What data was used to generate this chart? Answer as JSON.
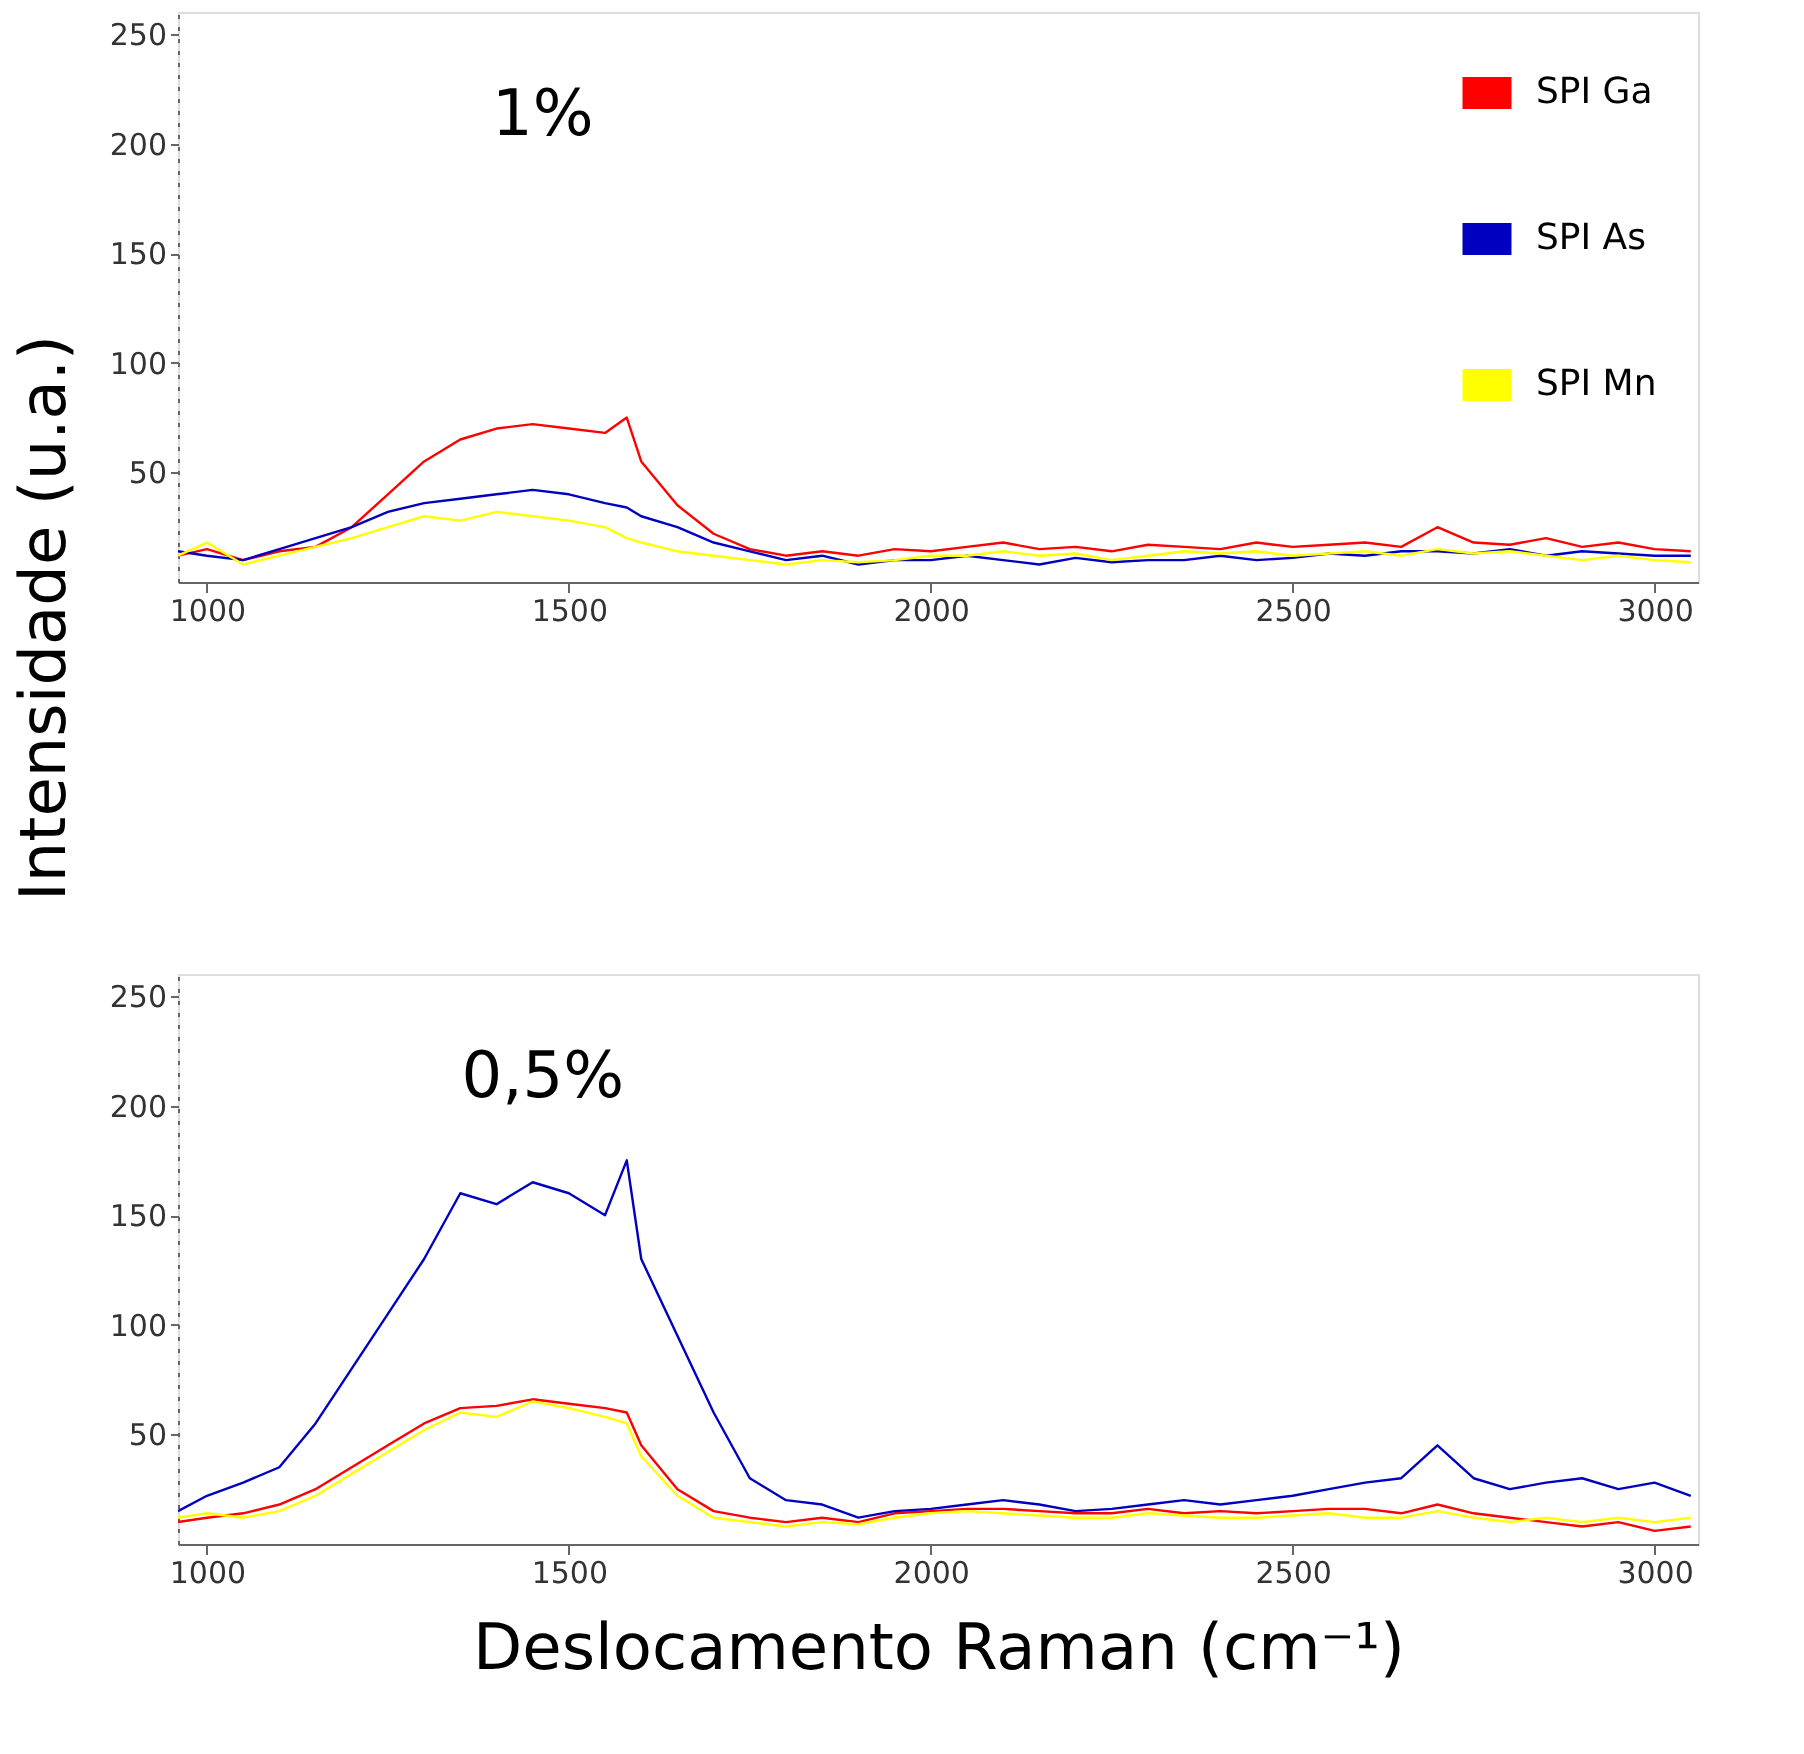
{
  "chart_data": [
    {
      "type": "line",
      "title": "1%",
      "ylabel": "Intensidade (u.a.)",
      "legend": "top right",
      "grid": false,
      "x": [
        960,
        1000,
        1050,
        1100,
        1150,
        1200,
        1250,
        1300,
        1350,
        1400,
        1450,
        1500,
        1550,
        1580,
        1600,
        1650,
        1700,
        1750,
        1800,
        1850,
        1900,
        1950,
        2000,
        2050,
        2100,
        2150,
        2200,
        2250,
        2300,
        2350,
        2400,
        2450,
        2500,
        2550,
        2600,
        2650,
        2700,
        2750,
        2800,
        2850,
        2900,
        2950,
        3000,
        3050
      ],
      "xlim": [
        960,
        3060
      ],
      "xticks": [
        1000,
        1500,
        2000,
        2500,
        3000
      ],
      "ylim": [
        0,
        260
      ],
      "yticks": [
        50,
        100,
        150,
        200,
        250
      ],
      "series": [
        {
          "name": "SPI Ga",
          "color": "#ff0000",
          "values": [
            12,
            15,
            10,
            14,
            16,
            25,
            40,
            55,
            65,
            70,
            72,
            70,
            68,
            75,
            55,
            35,
            22,
            15,
            12,
            14,
            12,
            15,
            14,
            16,
            18,
            15,
            16,
            14,
            17,
            16,
            15,
            18,
            16,
            17,
            18,
            16,
            25,
            18,
            17,
            20,
            16,
            18,
            15,
            14
          ]
        },
        {
          "name": "SPI As",
          "color": "#0000c0",
          "values": [
            14,
            12,
            10,
            15,
            20,
            25,
            32,
            36,
            38,
            40,
            42,
            40,
            36,
            34,
            30,
            25,
            18,
            14,
            10,
            12,
            8,
            10,
            10,
            12,
            10,
            8,
            11,
            9,
            10,
            10,
            12,
            10,
            11,
            13,
            12,
            14,
            14,
            13,
            15,
            12,
            14,
            13,
            12,
            12
          ]
        },
        {
          "name": "SPI Mn",
          "color": "#ffff00",
          "values": [
            12,
            18,
            8,
            12,
            16,
            20,
            25,
            30,
            28,
            32,
            30,
            28,
            25,
            20,
            18,
            14,
            12,
            10,
            8,
            10,
            9,
            10,
            12,
            12,
            14,
            12,
            13,
            10,
            12,
            14,
            13,
            14,
            12,
            13,
            14,
            12,
            15,
            13,
            14,
            12,
            10,
            12,
            10,
            9
          ]
        }
      ]
    },
    {
      "type": "line",
      "title": "0,5%",
      "xlabel": "Deslocamento Raman (cm⁻¹)",
      "legend": "top right",
      "grid": false,
      "x": [
        960,
        1000,
        1050,
        1100,
        1150,
        1200,
        1250,
        1300,
        1350,
        1400,
        1450,
        1500,
        1550,
        1580,
        1600,
        1650,
        1700,
        1750,
        1800,
        1850,
        1900,
        1950,
        2000,
        2050,
        2100,
        2150,
        2200,
        2250,
        2300,
        2350,
        2400,
        2450,
        2500,
        2550,
        2600,
        2650,
        2700,
        2750,
        2800,
        2850,
        2900,
        2950,
        3000,
        3050
      ],
      "xlim": [
        960,
        3060
      ],
      "xticks": [
        1000,
        1500,
        2000,
        2500,
        3000
      ],
      "ylim": [
        0,
        260
      ],
      "yticks": [
        50,
        100,
        150,
        200,
        250
      ],
      "series": [
        {
          "name": "SPI Ga",
          "color": "#ff0000",
          "values": [
            10,
            12,
            14,
            18,
            25,
            35,
            45,
            55,
            62,
            63,
            66,
            64,
            62,
            60,
            45,
            25,
            15,
            12,
            10,
            12,
            10,
            14,
            15,
            16,
            16,
            15,
            14,
            14,
            16,
            14,
            15,
            14,
            15,
            16,
            16,
            14,
            18,
            14,
            12,
            10,
            8,
            10,
            6,
            8
          ]
        },
        {
          "name": "SPI As",
          "color": "#0000c0",
          "values": [
            15,
            22,
            28,
            35,
            55,
            80,
            105,
            130,
            160,
            155,
            165,
            160,
            150,
            175,
            130,
            95,
            60,
            30,
            20,
            18,
            12,
            15,
            16,
            18,
            20,
            18,
            15,
            16,
            18,
            20,
            18,
            20,
            22,
            25,
            28,
            30,
            45,
            30,
            25,
            28,
            30,
            25,
            28,
            22
          ]
        },
        {
          "name": "SPI Mn",
          "color": "#ffff00",
          "values": [
            12,
            14,
            12,
            15,
            22,
            32,
            42,
            52,
            60,
            58,
            65,
            62,
            58,
            55,
            40,
            22,
            12,
            10,
            8,
            10,
            9,
            12,
            14,
            15,
            14,
            13,
            12,
            12,
            14,
            13,
            12,
            12,
            13,
            14,
            12,
            12,
            15,
            12,
            10,
            12,
            10,
            12,
            10,
            12
          ]
        }
      ]
    }
  ]
}
